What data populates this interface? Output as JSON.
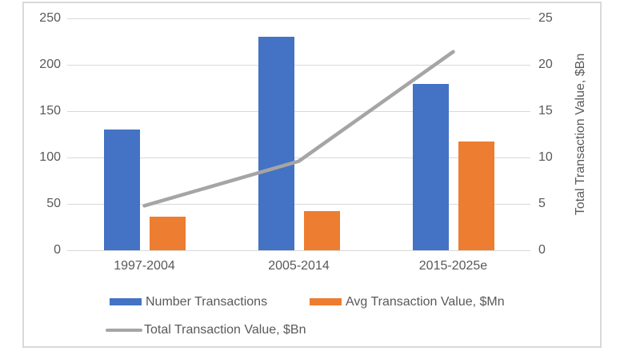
{
  "chart_data": {
    "type": "bar",
    "subtype": "combo-bar-line",
    "categories": [
      "1997-2004",
      "2005-2014",
      "2015-2025e"
    ],
    "series": [
      {
        "name": "Number Transactions",
        "kind": "bar",
        "axis": "left",
        "color": "#4472C4",
        "values": [
          130,
          230,
          179
        ]
      },
      {
        "name": "Avg Transaction Value, $Mn",
        "kind": "bar",
        "axis": "left",
        "color": "#ED7D31",
        "values": [
          36,
          42,
          117
        ]
      },
      {
        "name": "Total Transaction Value, $Bn",
        "kind": "line",
        "axis": "right",
        "color": "#A5A5A5",
        "values": [
          4.8,
          9.6,
          21.4
        ]
      }
    ],
    "left_axis": {
      "min": 0,
      "max": 250,
      "step": 50,
      "ticks": [
        "0",
        "50",
        "100",
        "150",
        "200",
        "250"
      ]
    },
    "right_axis": {
      "min": 0,
      "max": 25,
      "step": 5,
      "ticks": [
        "0",
        "5",
        "10",
        "15",
        "20",
        "25"
      ],
      "title": "Total Transaction Value, $Bn"
    },
    "grid": true,
    "legend_position": "bottom",
    "title": ""
  },
  "colors": {
    "bar_blue": "#4472C4",
    "bar_orange": "#ED7D31",
    "line_gray": "#A5A5A5",
    "gridline": "#D9D9D9",
    "frame_border": "#D9D9D9",
    "text": "#595959",
    "background": "#FFFFFF"
  }
}
